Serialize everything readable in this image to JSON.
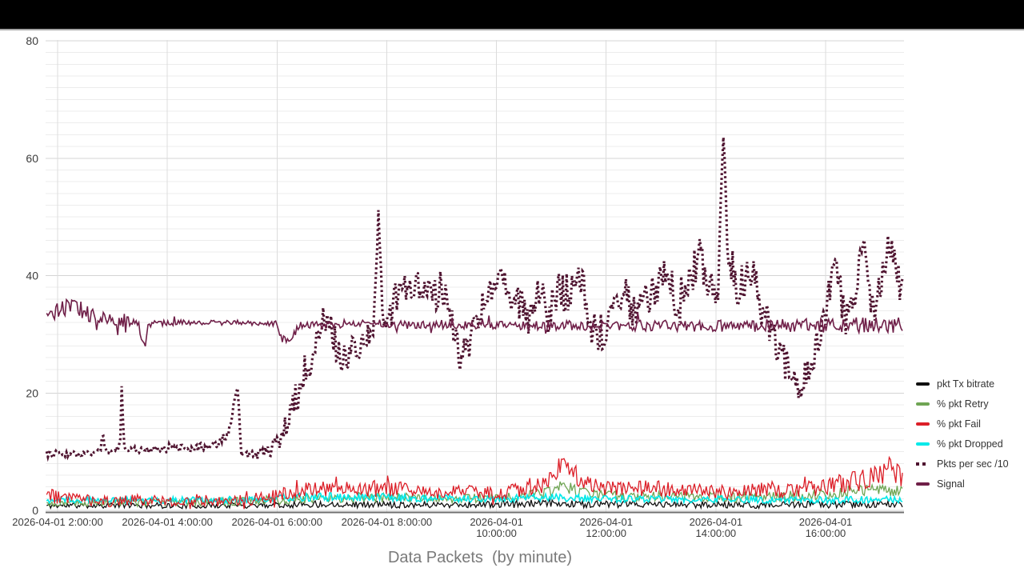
{
  "chart_data": {
    "type": "line",
    "title": "Data Packets  (by minute)",
    "y_axis": {
      "range": [
        0,
        80
      ],
      "major_ticks": [
        0,
        20,
        40,
        60,
        80
      ],
      "minor_step": 2,
      "grid": true
    },
    "x_axis": {
      "range_hours": [
        1.8,
        17.42
      ],
      "grid": true,
      "ticks": [
        {
          "hour": 2,
          "lines": [
            "2026-04-01 2:00:00"
          ]
        },
        {
          "hour": 4,
          "lines": [
            "2026-04-01 4:00:00"
          ]
        },
        {
          "hour": 6,
          "lines": [
            "2026-04-01 6:00:00"
          ]
        },
        {
          "hour": 8,
          "lines": [
            "2026-04-01 8:00:00"
          ]
        },
        {
          "hour": 10,
          "lines": [
            "2026-04-01",
            "10:00:00"
          ]
        },
        {
          "hour": 12,
          "lines": [
            "2026-04-01",
            "12:00:00"
          ]
        },
        {
          "hour": 14,
          "lines": [
            "2026-04-01",
            "14:00:00"
          ]
        },
        {
          "hour": 16,
          "lines": [
            "2026-04-01",
            "16:00:00"
          ]
        }
      ]
    },
    "legend_position": "right",
    "noise_seed": 11,
    "sample_step_hours": 0.024,
    "draw_order": [
      "tx",
      "retry",
      "dropped",
      "fail",
      "pkts",
      "signal"
    ],
    "series": [
      {
        "id": "tx",
        "name": "pkt Tx bitrate",
        "color": "#101010",
        "width": 1.3,
        "dash": null,
        "clamp_min": 0.05,
        "spike_prob": 0,
        "spike_mul": 1,
        "points": [
          [
            1.8,
            0.8,
            0.5
          ],
          [
            3,
            0.9,
            0.5
          ],
          [
            4.5,
            0.8,
            0.5
          ],
          [
            6,
            1,
            0.6
          ],
          [
            7,
            1.1,
            0.6
          ],
          [
            8,
            1,
            0.6
          ],
          [
            9,
            1,
            0.55
          ],
          [
            10,
            1,
            0.6
          ],
          [
            11,
            1.2,
            0.7
          ],
          [
            12,
            1,
            0.6
          ],
          [
            13,
            1,
            0.6
          ],
          [
            14,
            1,
            0.6
          ],
          [
            15,
            0.9,
            0.55
          ],
          [
            16,
            1,
            0.6
          ],
          [
            17.42,
            1,
            0.6
          ]
        ]
      },
      {
        "id": "retry",
        "name": "% pkt Retry",
        "color": "#6fa554",
        "width": 1.3,
        "dash": null,
        "clamp_min": 0.15,
        "spike_prob": 0,
        "spike_mul": 1,
        "points": [
          [
            1.8,
            1.2,
            0.6
          ],
          [
            3,
            1.3,
            0.6
          ],
          [
            5,
            1.4,
            0.7
          ],
          [
            6,
            1.8,
            0.8
          ],
          [
            7,
            2.2,
            0.9
          ],
          [
            8,
            2.2,
            0.9
          ],
          [
            9,
            2,
            0.8
          ],
          [
            10,
            2.2,
            0.8
          ],
          [
            10.9,
            2.8,
            1
          ],
          [
            11.2,
            4.3,
            1
          ],
          [
            11.45,
            3.3,
            1
          ],
          [
            11.8,
            2.5,
            0.9
          ],
          [
            13,
            2.3,
            0.9
          ],
          [
            14,
            2.2,
            0.9
          ],
          [
            15,
            2.3,
            0.9
          ],
          [
            16,
            2.8,
            1
          ],
          [
            16.5,
            3.2,
            1
          ],
          [
            17,
            3.5,
            1
          ],
          [
            17.42,
            3.2,
            1
          ]
        ]
      },
      {
        "id": "fail",
        "name": "% pkt Fail",
        "color": "#dc1f28",
        "width": 1.3,
        "dash": null,
        "clamp_min": 0.25,
        "spike_prob": 0.04,
        "spike_mul": 1.8,
        "points": [
          [
            1.8,
            3,
            1.5
          ],
          [
            2,
            2.2,
            1.2
          ],
          [
            2.5,
            1.8,
            1
          ],
          [
            3,
            1.5,
            0.9
          ],
          [
            3.5,
            1.8,
            1
          ],
          [
            4,
            1.6,
            0.9
          ],
          [
            4.5,
            1.8,
            1
          ],
          [
            5,
            1.6,
            1
          ],
          [
            5.5,
            1.8,
            1
          ],
          [
            6,
            2.5,
            1.2
          ],
          [
            6.5,
            3.5,
            1.2
          ],
          [
            7,
            3.8,
            1.3
          ],
          [
            7.5,
            3.5,
            1.3
          ],
          [
            8,
            3.8,
            1.5
          ],
          [
            8.5,
            3.2,
            1.2
          ],
          [
            9,
            3,
            1.2
          ],
          [
            9.5,
            3.2,
            1.2
          ],
          [
            10,
            3,
            1.2
          ],
          [
            10.5,
            3.5,
            1.3
          ],
          [
            10.9,
            4.5,
            1.5
          ],
          [
            11.15,
            7.5,
            1.6
          ],
          [
            11.3,
            7.8,
            1.6
          ],
          [
            11.5,
            5.5,
            1.5
          ],
          [
            11.8,
            4,
            1.3
          ],
          [
            12.2,
            3.5,
            1.3
          ],
          [
            12.8,
            3.8,
            1.4
          ],
          [
            13.3,
            3.5,
            1.3
          ],
          [
            13.8,
            3.2,
            1.3
          ],
          [
            14.3,
            3,
            1.2
          ],
          [
            14.8,
            3.5,
            1.3
          ],
          [
            15.3,
            3.2,
            1.3
          ],
          [
            15.8,
            3.8,
            1.4
          ],
          [
            16.2,
            4.5,
            1.5
          ],
          [
            16.6,
            5,
            1.8
          ],
          [
            16.9,
            5.5,
            2
          ],
          [
            17.1,
            6.8,
            2.2
          ],
          [
            17.2,
            7.5,
            2
          ],
          [
            17.3,
            6,
            2
          ],
          [
            17.42,
            5.5,
            2
          ]
        ]
      },
      {
        "id": "dropped",
        "name": "% pkt Dropped",
        "color": "#00e9e9",
        "width": 1.6,
        "dash": null,
        "clamp_min": 0.3,
        "spike_prob": 0,
        "spike_mul": 1,
        "points": [
          [
            1.8,
            1.9,
            0.6
          ],
          [
            3,
            1.7,
            0.5
          ],
          [
            5,
            1.8,
            0.6
          ],
          [
            6,
            2.2,
            0.7
          ],
          [
            7,
            2.3,
            0.7
          ],
          [
            8,
            2.2,
            0.7
          ],
          [
            9,
            2,
            0.6
          ],
          [
            10,
            2,
            0.6
          ],
          [
            11,
            2.2,
            0.7
          ],
          [
            12,
            2,
            0.6
          ],
          [
            13,
            1.9,
            0.6
          ],
          [
            14,
            1.9,
            0.6
          ],
          [
            15,
            1.8,
            0.6
          ],
          [
            16,
            1.8,
            0.6
          ],
          [
            17.42,
            1.8,
            0.6
          ]
        ]
      },
      {
        "id": "pkts",
        "name": "Pkts per sec /10",
        "color": "#4e132f",
        "width": 3.2,
        "dash": "2.6 3.4",
        "clamp_min": null,
        "spike_prob": 0,
        "spike_mul": 1,
        "points": [
          [
            1.8,
            9.5,
            0.6
          ],
          [
            2.4,
            9.7,
            0.6
          ],
          [
            2.79,
            10,
            0.45
          ],
          [
            2.82,
            14,
            0.4
          ],
          [
            2.86,
            10,
            0.45
          ],
          [
            3.05,
            10.5,
            0.5
          ],
          [
            3.14,
            10.8,
            0.5
          ],
          [
            3.17,
            21.8,
            0.4
          ],
          [
            3.21,
            10.5,
            0.5
          ],
          [
            3.6,
            10.2,
            0.6
          ],
          [
            4.1,
            10.8,
            0.8
          ],
          [
            4.5,
            10.4,
            0.7
          ],
          [
            4.95,
            11.5,
            1
          ],
          [
            5.12,
            13.5,
            0.8
          ],
          [
            5.28,
            21.3,
            0.5
          ],
          [
            5.35,
            9,
            0.8
          ],
          [
            5.75,
            9.5,
            1
          ],
          [
            5.95,
            11,
            1.5
          ],
          [
            6.1,
            13,
            2
          ],
          [
            6.25,
            17,
            2.5
          ],
          [
            6.38,
            20,
            3
          ],
          [
            6.52,
            24,
            3
          ],
          [
            6.7,
            28,
            3
          ],
          [
            6.85,
            34,
            2.5
          ],
          [
            7,
            30,
            3
          ],
          [
            7.2,
            26,
            3
          ],
          [
            7.5,
            28,
            3
          ],
          [
            7.75,
            31,
            3
          ],
          [
            7.85,
            51,
            1.2
          ],
          [
            7.95,
            30,
            3
          ],
          [
            8.2,
            37,
            3
          ],
          [
            8.5,
            38,
            3
          ],
          [
            8.8,
            36,
            3
          ],
          [
            9,
            38,
            3
          ],
          [
            9.15,
            33,
            3
          ],
          [
            9.35,
            26,
            3
          ],
          [
            9.55,
            30,
            3
          ],
          [
            9.75,
            35,
            3
          ],
          [
            9.95,
            37,
            3
          ],
          [
            10.15,
            39,
            3
          ],
          [
            10.35,
            36,
            3
          ],
          [
            10.55,
            33,
            4
          ],
          [
            10.75,
            37,
            3
          ],
          [
            10.95,
            34,
            4
          ],
          [
            11.15,
            38,
            3
          ],
          [
            11.35,
            36,
            4
          ],
          [
            11.55,
            39,
            3
          ],
          [
            11.75,
            31,
            4
          ],
          [
            11.95,
            30,
            4
          ],
          [
            12.15,
            34,
            3
          ],
          [
            12.35,
            37,
            3
          ],
          [
            12.55,
            33,
            3
          ],
          [
            12.75,
            36,
            3
          ],
          [
            12.95,
            38,
            3
          ],
          [
            13.12,
            42,
            3
          ],
          [
            13.3,
            35,
            4
          ],
          [
            13.5,
            38,
            4
          ],
          [
            13.7,
            44,
            3
          ],
          [
            13.9,
            36,
            4
          ],
          [
            14.05,
            40,
            4
          ],
          [
            14.14,
            64,
            1.2
          ],
          [
            14.22,
            42,
            4
          ],
          [
            14.45,
            38,
            4
          ],
          [
            14.7,
            40,
            3
          ],
          [
            14.9,
            32,
            4
          ],
          [
            15.1,
            27,
            4
          ],
          [
            15.3,
            24,
            3
          ],
          [
            15.55,
            21,
            2.5
          ],
          [
            15.8,
            27,
            3
          ],
          [
            16.05,
            36,
            3
          ],
          [
            16.19,
            43,
            3
          ],
          [
            16.35,
            32,
            3
          ],
          [
            16.55,
            38,
            3
          ],
          [
            16.7,
            47,
            2.5
          ],
          [
            16.85,
            34,
            3
          ],
          [
            17,
            38,
            3
          ],
          [
            17.15,
            45,
            3
          ],
          [
            17.3,
            40,
            3
          ],
          [
            17.42,
            37,
            3
          ]
        ]
      },
      {
        "id": "signal",
        "name": "Signal",
        "color": "#6f1f48",
        "width": 1.6,
        "dash": null,
        "clamp_min": null,
        "spike_prob": 0.05,
        "spike_mul": 2.6,
        "points": [
          [
            1.8,
            33.3,
            1.4
          ],
          [
            2.1,
            34.3,
            1.6
          ],
          [
            2.35,
            34.8,
            1.5
          ],
          [
            2.6,
            33.2,
            1.3
          ],
          [
            2.9,
            32.4,
            1.2
          ],
          [
            3.2,
            32.2,
            1
          ],
          [
            3.48,
            32,
            0.6
          ],
          [
            3.52,
            29,
            0.9
          ],
          [
            3.58,
            27.8,
            0.9
          ],
          [
            3.66,
            31.8,
            0.6
          ],
          [
            4.2,
            32,
            0.45
          ],
          [
            5,
            32,
            0.45
          ],
          [
            5.98,
            31.8,
            0.5
          ],
          [
            6.08,
            29.3,
            0.8
          ],
          [
            6.28,
            29.5,
            0.8
          ],
          [
            6.4,
            31.6,
            0.6
          ],
          [
            8,
            31.7,
            0.6
          ],
          [
            10,
            31.5,
            0.7
          ],
          [
            12,
            31.5,
            0.9
          ],
          [
            14,
            31.4,
            1
          ],
          [
            15.5,
            31.5,
            1.2
          ],
          [
            16.5,
            31.6,
            1.3
          ],
          [
            17.42,
            31.6,
            1.4
          ]
        ]
      }
    ],
    "colors": {
      "grid_minor": "#ececec",
      "grid_major": "#d4d4d4",
      "grid_vertical": "#dcdcdc",
      "axis_line": "#707070",
      "tick_text": "#3c3c3c",
      "title_text": "#7a7a7a",
      "top_bar": "#000000"
    }
  }
}
